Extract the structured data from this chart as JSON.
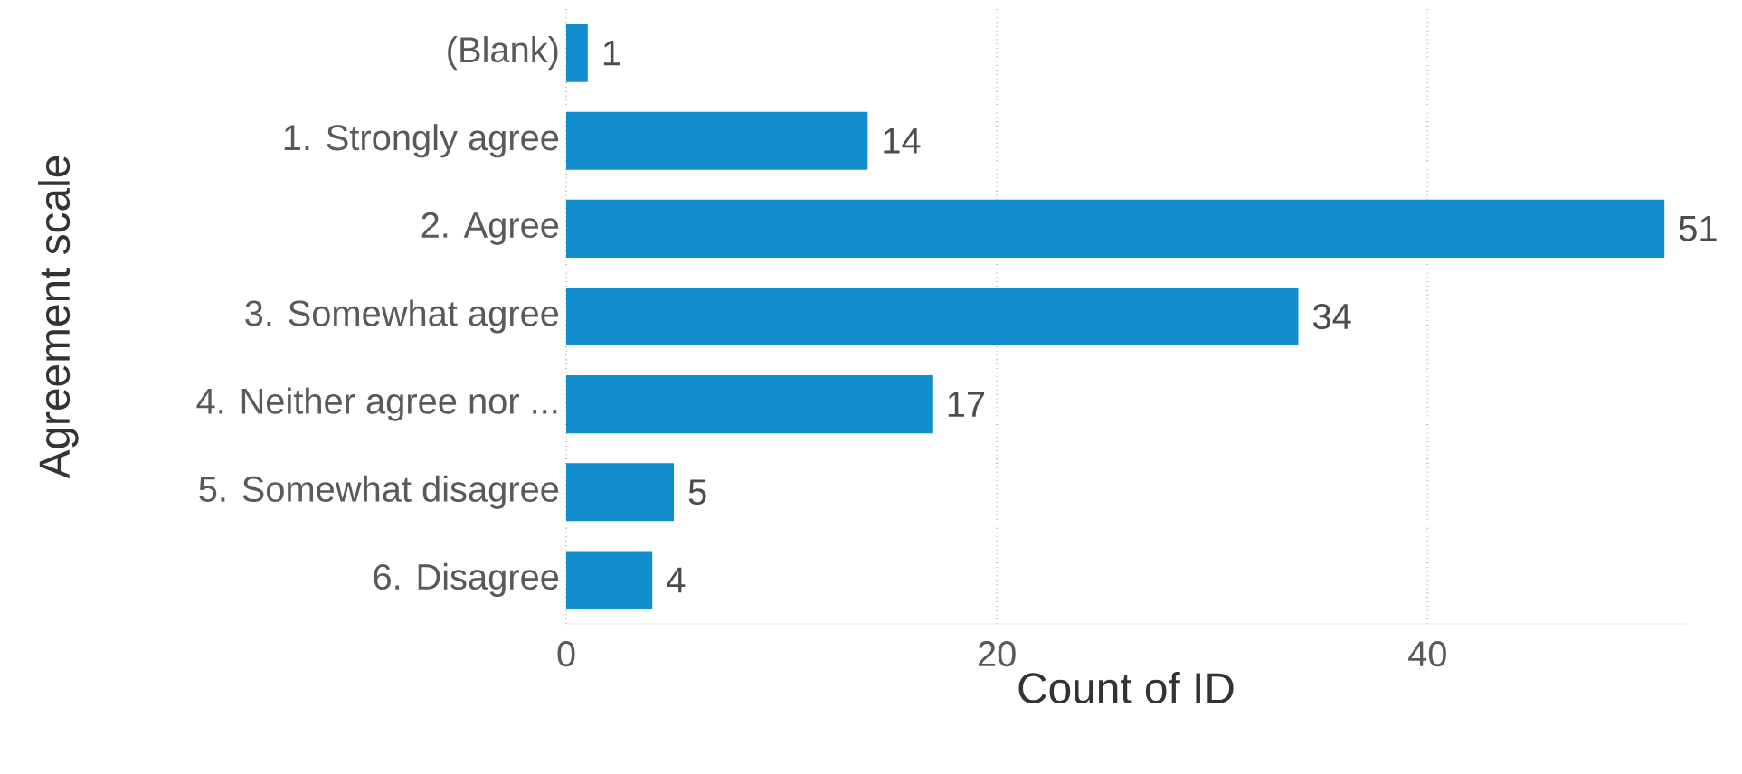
{
  "chart_data": {
    "type": "bar",
    "orientation": "horizontal",
    "xlabel": "Count of ID",
    "ylabel": "Agreement scale",
    "categories": [
      "(Blank)",
      "1. Strongly agree",
      "2. Agree",
      "3. Somewhat agree",
      "4. Neither agree nor ...",
      "5. Somewhat disagree",
      "6. Disagree"
    ],
    "values": [
      1,
      14,
      51,
      34,
      17,
      5,
      4
    ],
    "color": "#118dce",
    "xlim": [
      0,
      52
    ],
    "xticks": [
      0,
      20,
      40
    ],
    "grid": "x",
    "data_labels": true
  }
}
